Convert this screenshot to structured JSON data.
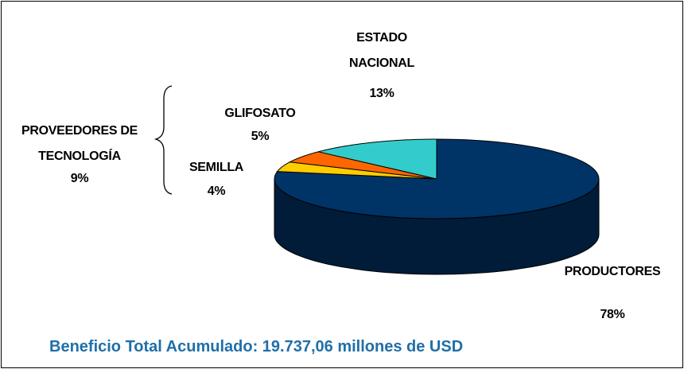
{
  "chart_data": {
    "type": "pie3d",
    "title": "Beneficio Total Acumulado: 19.737,06 millones de USD",
    "categories": [
      "PRODUCTORES",
      "SEMILLA",
      "GLIFOSATO",
      "ESTADO NACIONAL"
    ],
    "values": [
      78,
      4,
      5,
      13
    ],
    "value_labels": [
      "78%",
      "4%",
      "5%",
      "13%"
    ],
    "colors": [
      "#003366",
      "#ffcc00",
      "#ff6600",
      "#33cccc"
    ],
    "annotations": [
      {
        "text": "PROVEEDORES DE TECNOLOGÍA",
        "label": "9%"
      }
    ]
  }
}
